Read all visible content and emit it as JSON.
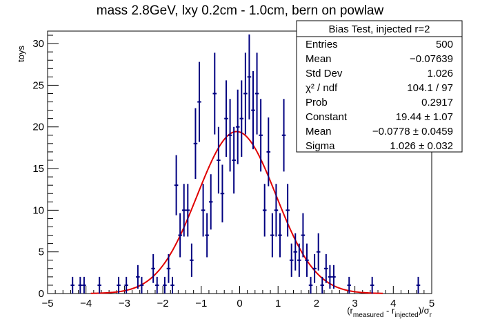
{
  "chart_data": {
    "type": "scatter",
    "title": "mass 2.8GeV, lxy 0.2cm - 1.0cm, bern on powlaw",
    "ylabel": "toys",
    "xlabel": {
      "open": "(r",
      "sub1": "measured",
      "mid": " - r",
      "sub2": "injected",
      "close": ")/σ",
      "sub3": "r"
    },
    "xlim": [
      -5,
      5
    ],
    "ylim": [
      0,
      31.5
    ],
    "x_ticks": [
      "−5",
      "−4",
      "−3",
      "−2",
      "−1",
      "0",
      "1",
      "2",
      "3",
      "4",
      "5"
    ],
    "y_ticks": [
      "0",
      "5",
      "10",
      "15",
      "20",
      "25",
      "30"
    ],
    "series": [
      {
        "type": "points_with_errors",
        "color": "#000080",
        "bin_width": 0.1,
        "x": [
          -4.35,
          -4.15,
          -4.05,
          -3.65,
          -3.15,
          -2.95,
          -2.65,
          -2.55,
          -2.25,
          -2.15,
          -1.95,
          -1.85,
          -1.75,
          -1.65,
          -1.55,
          -1.45,
          -1.35,
          -1.25,
          -1.15,
          -1.05,
          -0.95,
          -0.85,
          -0.75,
          -0.65,
          -0.55,
          -0.45,
          -0.35,
          -0.25,
          -0.15,
          -0.05,
          0.05,
          0.15,
          0.25,
          0.35,
          0.45,
          0.55,
          0.65,
          0.75,
          0.85,
          0.95,
          1.05,
          1.15,
          1.25,
          1.35,
          1.45,
          1.55,
          1.65,
          1.75,
          1.85,
          1.95,
          2.05,
          2.15,
          2.25,
          2.35,
          2.45,
          2.85,
          3.45,
          4.65
        ],
        "y": [
          1,
          1,
          1,
          1,
          1,
          1,
          2,
          1,
          3,
          1,
          1,
          3,
          1,
          13,
          7,
          10,
          10,
          4,
          18,
          23,
          10,
          7,
          11,
          24,
          16,
          12,
          21,
          19,
          16,
          20,
          21,
          24,
          26,
          22,
          24,
          19,
          10,
          17,
          7,
          10,
          7,
          19,
          10,
          4,
          5,
          4,
          7,
          4,
          1,
          3,
          5,
          1,
          3,
          2,
          2,
          1,
          1,
          1
        ],
        "yerr": [
          1,
          1,
          1,
          1,
          1,
          1,
          1.414,
          1,
          1.732,
          1,
          1,
          1.732,
          1,
          3.606,
          2.646,
          3.162,
          3.162,
          2,
          4.243,
          4.796,
          3.162,
          2.646,
          3.317,
          4.899,
          4,
          3.464,
          4.583,
          4.359,
          4,
          4.472,
          4.583,
          4.899,
          5.099,
          4.69,
          4.899,
          4.359,
          3.162,
          4.123,
          2.646,
          3.162,
          2.646,
          4.359,
          3.162,
          2,
          2.236,
          2,
          2.646,
          2,
          1,
          1.732,
          2.236,
          1,
          1.732,
          1.414,
          1.414,
          1,
          1,
          1
        ]
      },
      {
        "type": "gaussian_fit",
        "color": "#e00000",
        "constant": 19.44,
        "mean": -0.0778,
        "sigma": 1.026
      }
    ],
    "stats_box": {
      "title": "Bias Test, injected r=2",
      "rows": [
        {
          "label": "Entries",
          "value": "500"
        },
        {
          "label": "Mean",
          "value": "−0.07639"
        },
        {
          "label": "Std Dev",
          "value": "1.026"
        },
        {
          "label": "χ² / ndf",
          "value": "104.1 / 97"
        },
        {
          "label": "Prob",
          "value": "0.2917"
        },
        {
          "label": "Constant",
          "value": "19.44 ± 1.07"
        },
        {
          "label": "Mean",
          "value": "−0.0778 ± 0.0459"
        },
        {
          "label": "Sigma",
          "value": "1.026 ± 0.032"
        }
      ]
    }
  }
}
